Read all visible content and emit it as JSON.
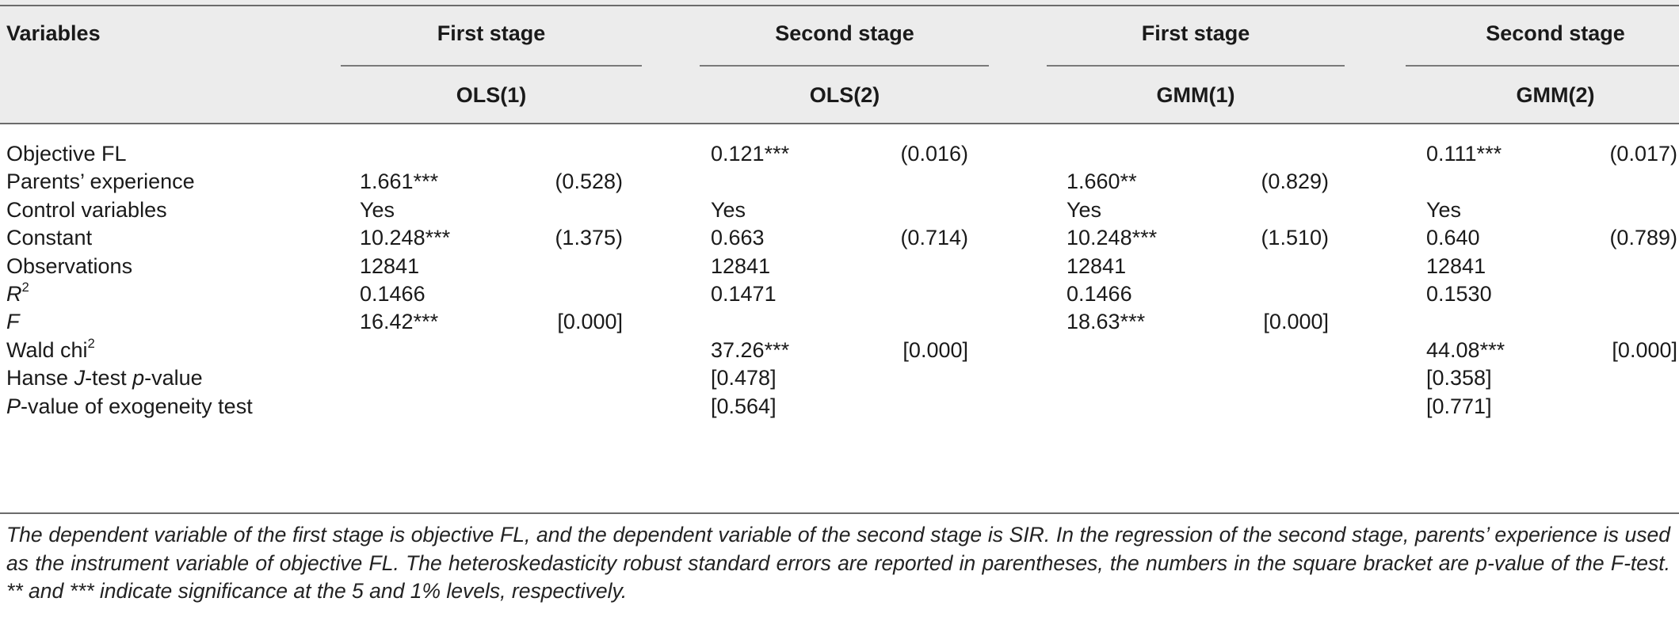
{
  "table": {
    "header": {
      "variables_label": "Variables",
      "stage_labels": [
        "First stage",
        "Second stage",
        "First stage",
        "Second stage"
      ],
      "model_labels": [
        "OLS(1)",
        "OLS(2)",
        "GMM(1)",
        "GMM(2)"
      ]
    },
    "rows": [
      {
        "label": "Objective FL",
        "cells": [
          [
            "",
            ""
          ],
          [
            "0.121***",
            "(0.016)"
          ],
          [
            "",
            ""
          ],
          [
            "0.111***",
            "(0.017)"
          ]
        ]
      },
      {
        "label": "Parents’ experience",
        "cells": [
          [
            "1.661***",
            "(0.528)"
          ],
          [
            "",
            ""
          ],
          [
            "1.660**",
            "(0.829)"
          ],
          [
            "",
            ""
          ]
        ]
      },
      {
        "label": "Control variables",
        "cells": [
          [
            "Yes",
            ""
          ],
          [
            "Yes",
            ""
          ],
          [
            "Yes",
            ""
          ],
          [
            "Yes",
            ""
          ]
        ]
      },
      {
        "label": "Constant",
        "cells": [
          [
            "10.248***",
            "(1.375)"
          ],
          [
            "0.663",
            "(0.714)"
          ],
          [
            "10.248***",
            "(1.510)"
          ],
          [
            "0.640",
            "(0.789)"
          ]
        ]
      },
      {
        "label": "Observations",
        "cells": [
          [
            "12841",
            ""
          ],
          [
            "12841",
            ""
          ],
          [
            "12841",
            ""
          ],
          [
            "12841",
            ""
          ]
        ]
      },
      {
        "label_main": "R",
        "label_sup": "2",
        "cells": [
          [
            "0.1466",
            ""
          ],
          [
            "0.1471",
            ""
          ],
          [
            "0.1466",
            ""
          ],
          [
            "0.1530",
            ""
          ]
        ]
      },
      {
        "label": "F",
        "cells": [
          [
            "16.42***",
            "[0.000]"
          ],
          [
            "",
            ""
          ],
          [
            "18.63***",
            "[0.000]"
          ],
          [
            "",
            ""
          ]
        ]
      },
      {
        "label_main": "Wald chi",
        "label_sup": "2",
        "cells": [
          [
            "",
            ""
          ],
          [
            "37.26***",
            "[0.000]"
          ],
          [
            "",
            ""
          ],
          [
            "44.08***",
            "[0.000]"
          ]
        ]
      },
      {
        "label_parts": [
          "Hanse ",
          "J",
          "-test ",
          "p",
          "-value"
        ],
        "cells": [
          [
            "",
            ""
          ],
          [
            "[0.478]",
            ""
          ],
          [
            "",
            ""
          ],
          [
            "[0.358]",
            ""
          ]
        ]
      },
      {
        "label_parts": [
          "P",
          "-value of exogeneity test"
        ],
        "cells": [
          [
            "",
            ""
          ],
          [
            "[0.564]",
            ""
          ],
          [
            "",
            ""
          ],
          [
            "[0.771]",
            ""
          ]
        ]
      }
    ],
    "note": "The dependent variable of the first stage is objective FL, and the dependent variable of the second stage is SIR. In the regression of the second stage, parents’ experience is used as the instrument variable of objective FL. The heteroskedasticity robust standard errors are reported in parentheses, the numbers in the square bracket are p-value of the F-test. ** and *** indicate significance at the 5 and 1% levels, respectively."
  }
}
